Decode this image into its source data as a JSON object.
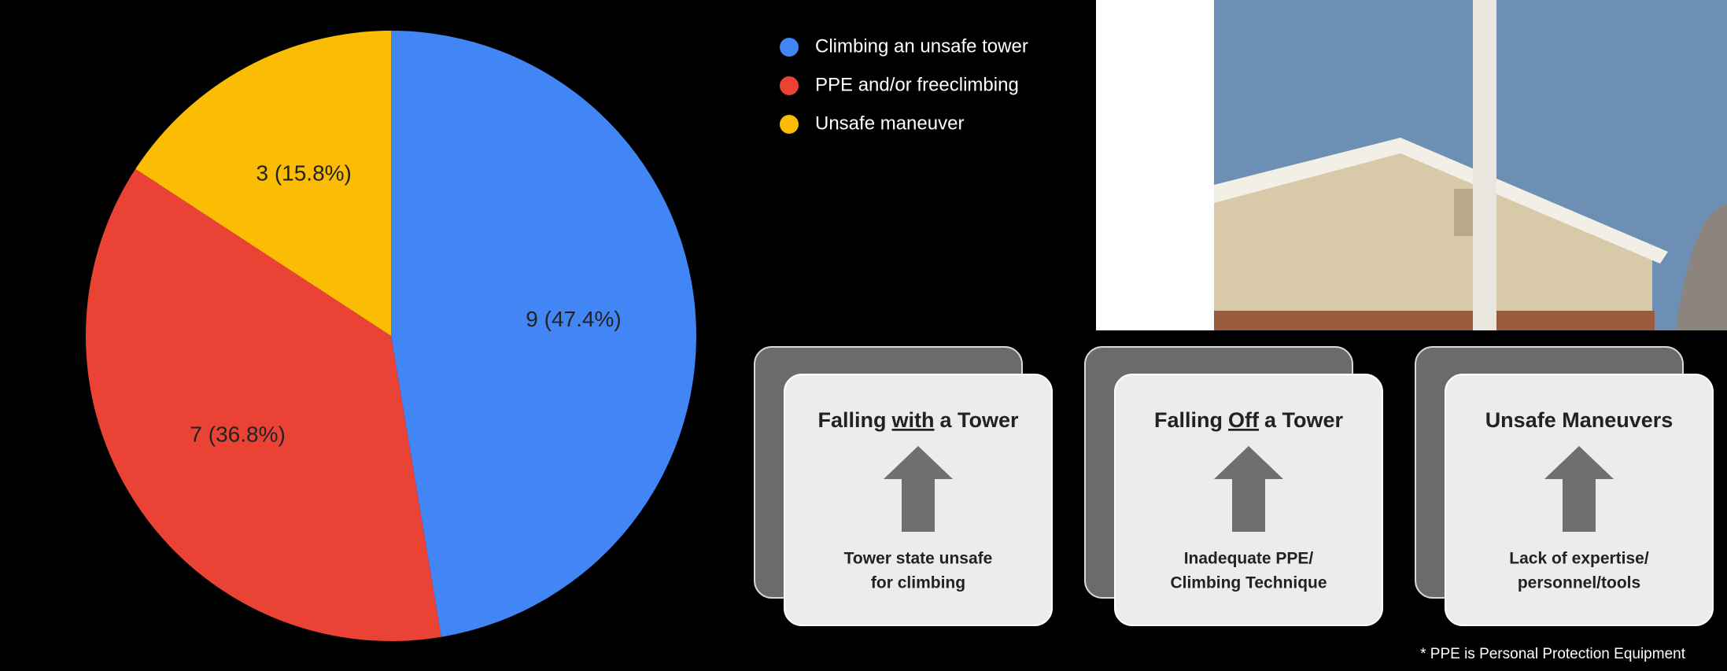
{
  "chart_data": {
    "type": "pie",
    "categories": [
      "Climbing an unsafe tower",
      "PPE and/or freeclimbing",
      "Unsafe maneuver"
    ],
    "values": [
      9,
      7,
      3
    ],
    "value_labels": [
      "9 (47.4%)",
      "7 (36.8%)",
      "3 (15.8%)"
    ],
    "colors": [
      "#4285f4",
      "#ea4335",
      "#fbbc04"
    ],
    "legend": "top-right"
  },
  "cards": [
    {
      "title": {
        "before": "Falling",
        "underlined": "with",
        "after": "a Tower"
      },
      "cause": [
        "Tower state unsafe",
        "for climbing"
      ]
    },
    {
      "title": {
        "before": "Falling",
        "underlined": "Off",
        "after": "a Tower"
      },
      "cause": [
        "Inadequate PPE/",
        "Climbing Technique"
      ]
    },
    {
      "title": {
        "before": "Unsafe Maneuvers"
      },
      "cause": [
        "Lack of expertise/",
        "personnel/tools"
      ]
    }
  ],
  "footnote": "* PPE is Personal Protection Equipment"
}
